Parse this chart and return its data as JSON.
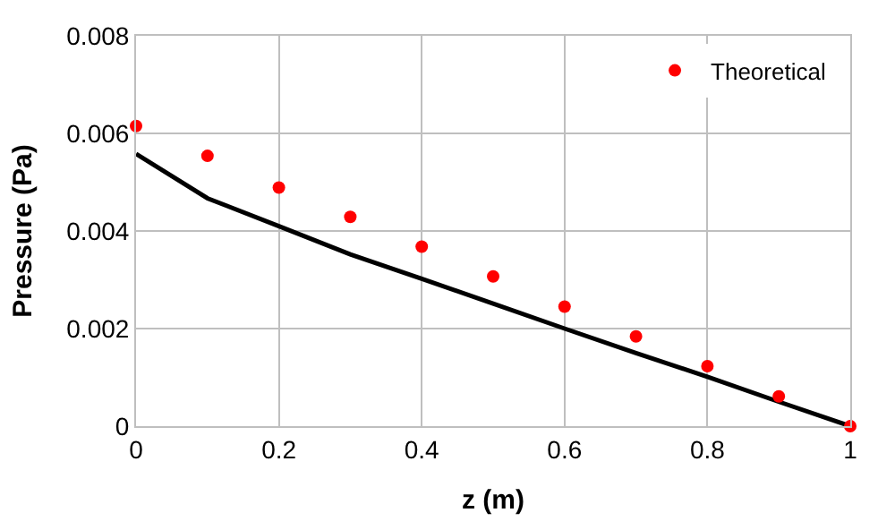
{
  "chart_data": {
    "type": "line",
    "xlabel": "z (m)",
    "ylabel": "Pressure (Pa)",
    "x": [
      0,
      0.1,
      0.2,
      0.3,
      0.4,
      0.5,
      0.6,
      0.7,
      0.8,
      0.9,
      1
    ],
    "series": [
      {
        "color": "#000000",
        "line_style": "solid",
        "marker": "none",
        "values": [
          0.00558,
          0.00467,
          0.0041,
          0.00352,
          0.00302,
          0.00251,
          0.002,
          0.0015,
          0.00101,
          0.0005,
          0
        ]
      },
      {
        "type": "scatter",
        "name": "Theoretical",
        "color": "#ff0000",
        "marker": "circle",
        "values": [
          0.00615,
          0.00554,
          0.00489,
          0.00429,
          0.00368,
          0.00307,
          0.00245,
          0.00184,
          0.00123,
          0.00061,
          0
        ]
      }
    ],
    "xlim": [
      0,
      1
    ],
    "xticks": [
      0,
      0.2,
      0.4,
      0.6,
      0.8,
      1
    ],
    "ylim": [
      0,
      0.008
    ],
    "yticks": [
      0,
      0.002,
      0.004,
      0.006,
      0.008
    ],
    "grid": true,
    "legend": "top right"
  }
}
